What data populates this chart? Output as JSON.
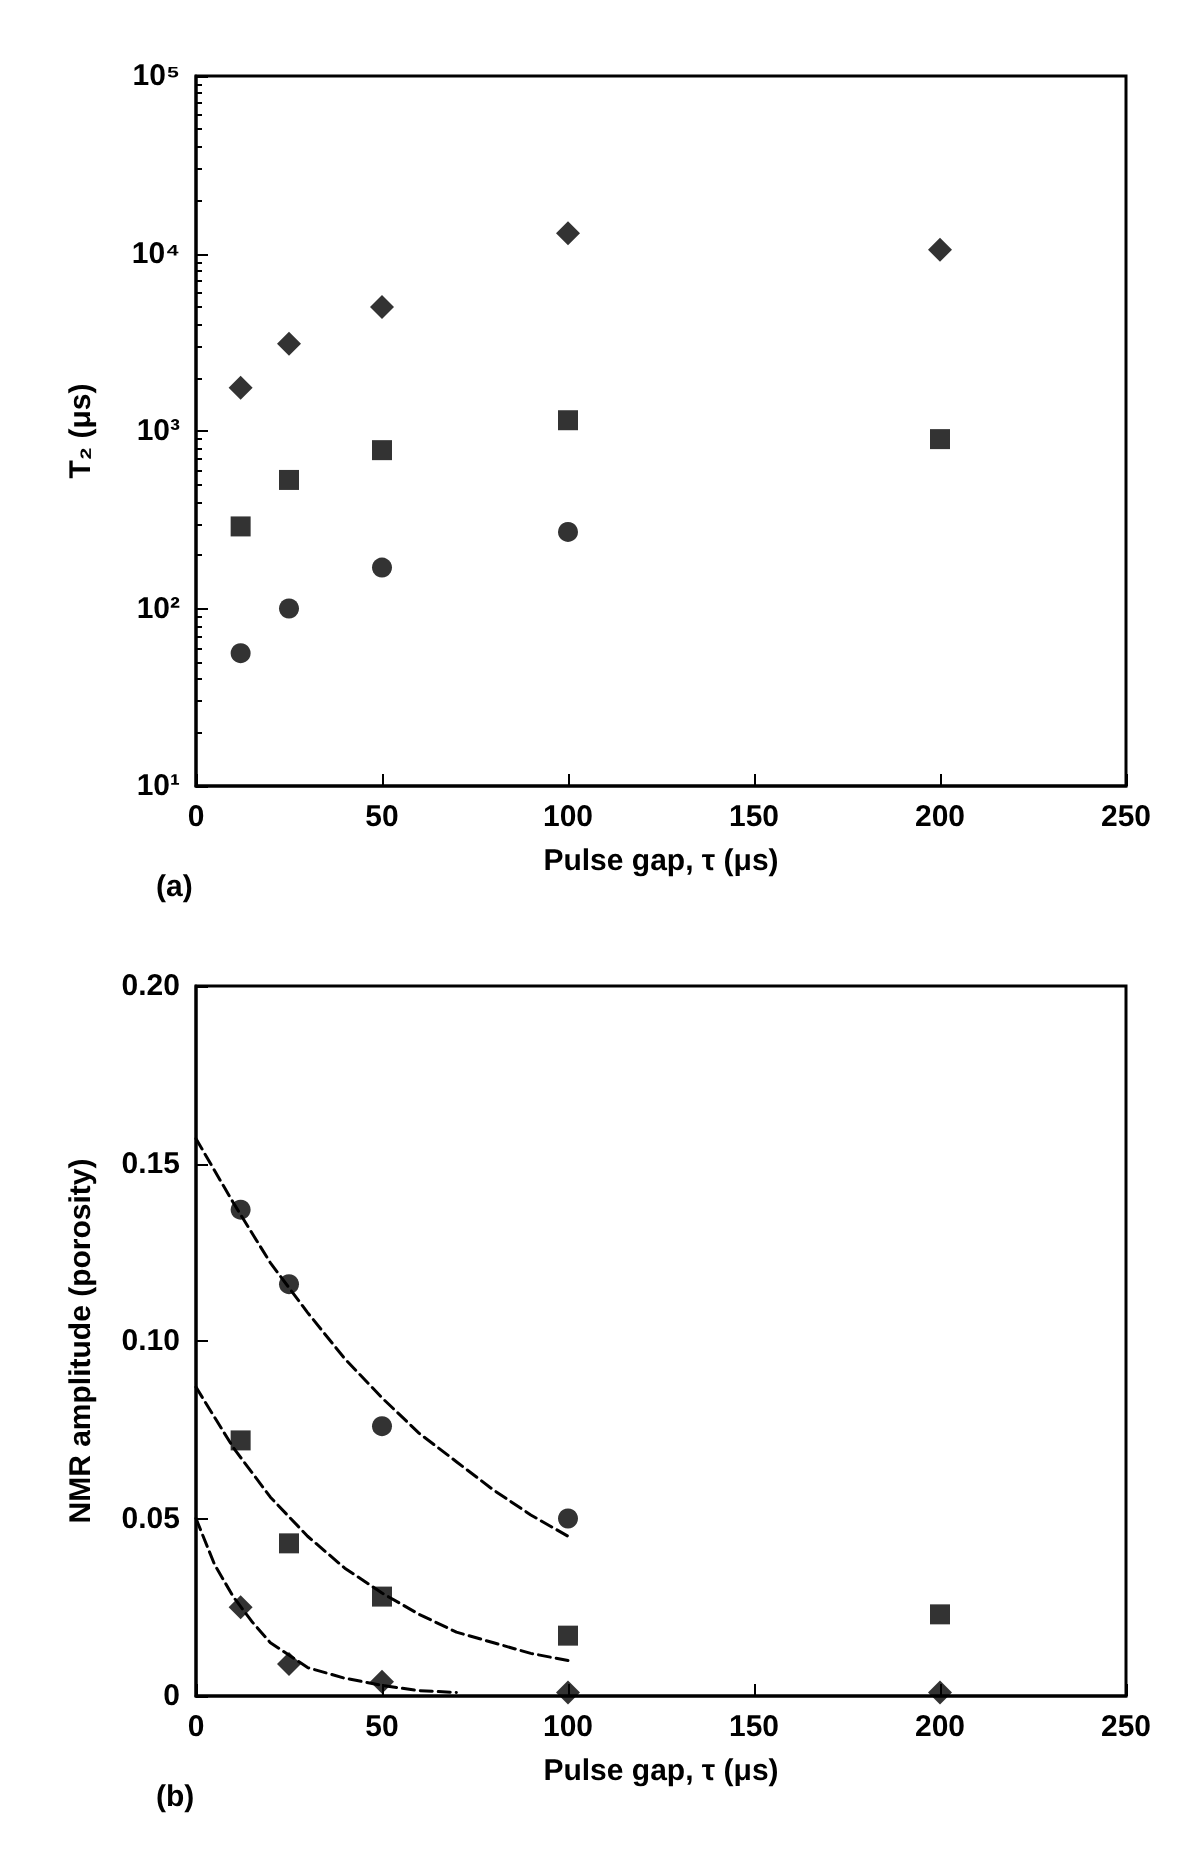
{
  "chart_data": [
    {
      "type": "scatter",
      "xlabel": "Pulse gap, τ (μs)",
      "ylabel": "T₂ (μs)",
      "annotations": [
        "(a)"
      ],
      "log": "y",
      "grid": false,
      "xlim": [
        0,
        250
      ],
      "xticks": [
        0,
        50,
        100,
        150,
        200,
        250
      ],
      "ylim": [
        10,
        100000
      ],
      "yticks": [
        {
          "value": 10,
          "label": "10¹"
        },
        {
          "value": 100,
          "label": "10²"
        },
        {
          "value": 1000,
          "label": "10³"
        },
        {
          "value": 10000,
          "label": "10⁴"
        },
        {
          "value": 100000,
          "label": "10⁵"
        }
      ],
      "series": [
        {
          "marker": "diamond",
          "color": "#000000",
          "x": [
            12,
            25,
            50,
            100,
            200
          ],
          "values": [
            1750,
            3100,
            5000,
            13000,
            10500
          ]
        },
        {
          "marker": "square",
          "color": "#000000",
          "x": [
            12,
            25,
            50,
            100,
            200
          ],
          "values": [
            290,
            530,
            780,
            1150,
            900
          ]
        },
        {
          "marker": "circle",
          "color": "#000000",
          "x": [
            12,
            25,
            50,
            100
          ],
          "values": [
            56,
            100,
            170,
            270
          ]
        }
      ]
    },
    {
      "type": "scatter",
      "xlabel": "Pulse gap, τ (μs)",
      "ylabel": "NMR amplitude (porosity)",
      "annotations": [
        "(b)"
      ],
      "grid": false,
      "xlim": [
        0,
        250
      ],
      "xticks": [
        0,
        50,
        100,
        150,
        200,
        250
      ],
      "ylim": [
        0,
        0.2
      ],
      "yticks": [
        0,
        {
          "value": 0.05,
          "label": "0.05"
        },
        {
          "value": 0.1,
          "label": "0.10"
        },
        {
          "value": 0.15,
          "label": "0.15"
        },
        {
          "value": 0.2,
          "label": "0.20"
        }
      ],
      "series": [
        {
          "marker": "circle",
          "color": "#000000",
          "x": [
            12,
            25,
            50,
            100
          ],
          "values": [
            0.137,
            0.116,
            0.076,
            0.05
          ]
        },
        {
          "marker": "square",
          "color": "#000000",
          "x": [
            12,
            25,
            50,
            100,
            200
          ],
          "values": [
            0.072,
            0.043,
            0.028,
            0.017,
            0.023
          ]
        },
        {
          "marker": "diamond",
          "color": "#000000",
          "x": [
            12,
            25,
            50,
            100,
            200
          ],
          "values": [
            0.025,
            0.009,
            0.004,
            0.001,
            0.001
          ]
        },
        {
          "type": "line",
          "marker": "none",
          "line_style": "dashed",
          "color": "#000000",
          "x": [
            0,
            10,
            20,
            30,
            40,
            50,
            60,
            70,
            80,
            90,
            100
          ],
          "values": [
            0.157,
            0.139,
            0.122,
            0.108,
            0.095,
            0.084,
            0.074,
            0.066,
            0.058,
            0.051,
            0.045
          ]
        },
        {
          "type": "line",
          "marker": "none",
          "line_style": "dashed",
          "color": "#000000",
          "x": [
            0,
            10,
            20,
            30,
            40,
            50,
            60,
            70,
            80,
            90,
            100
          ],
          "values": [
            0.087,
            0.07,
            0.056,
            0.045,
            0.036,
            0.029,
            0.023,
            0.018,
            0.015,
            0.012,
            0.01
          ]
        },
        {
          "type": "line",
          "marker": "none",
          "line_style": "dashed",
          "color": "#000000",
          "x": [
            0,
            5,
            10,
            15,
            20,
            30,
            40,
            50,
            60,
            70
          ],
          "values": [
            0.05,
            0.037,
            0.028,
            0.021,
            0.015,
            0.008,
            0.005,
            0.003,
            0.0015,
            0.001
          ]
        }
      ]
    }
  ]
}
